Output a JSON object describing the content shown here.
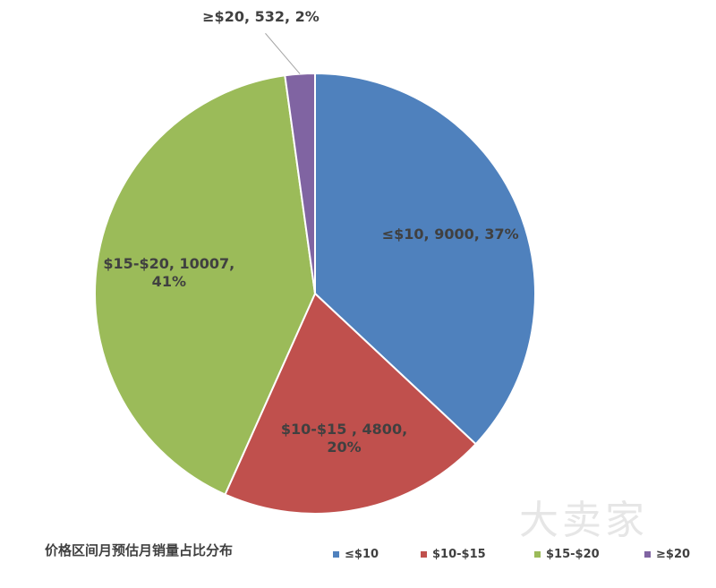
{
  "chart_data": {
    "type": "pie",
    "title": "价格区间月预估月销量占比分布",
    "categories": [
      "≤$10",
      "$10-$15",
      "$15-$20",
      "≥$20"
    ],
    "values": [
      9000,
      4800,
      10007,
      532
    ],
    "value_labels": [
      "≤$10, 9000, 37%",
      "$10-$15 , 4800,\n20%",
      "$15-$20, 10007,\n41%",
      "≥$20, 532, 2%"
    ],
    "colors": [
      "#4f81bd",
      "#c0504d",
      "#9bbb59",
      "#8064a2"
    ],
    "legend": "bottom-right",
    "watermark": "大卖家"
  }
}
